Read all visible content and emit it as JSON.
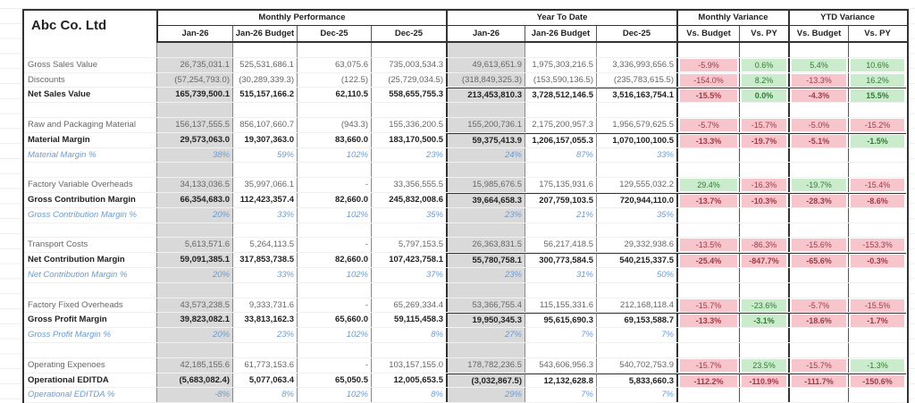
{
  "company": "Abc Co. Ltd",
  "groups": [
    "Monthly Performance",
    "Year To Date",
    "Monthly Variance",
    "YTD Variance"
  ],
  "columns": [
    "Jan-26",
    "Jan-26 Budget",
    "Dec-25",
    "Dec-25",
    "Jan-26",
    "Jan-26 Budget",
    "Dec-25",
    "Vs. Budget",
    "Vs. PY",
    "Vs. Budget",
    "Vs. PY"
  ],
  "colors": {
    "negative_bg": "#f6c6cc",
    "positive_bg": "#cbeccc",
    "shaded_column": "#d9d9d9",
    "pct_text": "#6a9bd0"
  },
  "rows": [
    {
      "type": "blank"
    },
    {
      "type": "normal",
      "label": "Gross Sales Value",
      "values": [
        "26,735,031.1",
        "525,531,686.1",
        "63,075.6",
        "735,003,534.3",
        "49,613,651.9",
        "1,975,303,216.5",
        "3,336,993,656.5"
      ],
      "variance": [
        {
          "v": "-5.9%",
          "c": "red"
        },
        {
          "v": "0.6%",
          "c": "green"
        },
        {
          "v": "5.4%",
          "c": "green"
        },
        {
          "v": "10.6%",
          "c": "green"
        }
      ]
    },
    {
      "type": "normal",
      "label": "Discounts",
      "values": [
        "(57,254,793.0)",
        "(30,289,339.3)",
        "(122.5)",
        "(25,729,034.5)",
        "(318,849,325.3)",
        "(153,590,136.5)",
        "(235,783,615.5)"
      ],
      "variance": [
        {
          "v": "-154.0%",
          "c": "red"
        },
        {
          "v": "8.2%",
          "c": "green"
        },
        {
          "v": "-13.3%",
          "c": "red"
        },
        {
          "v": "16.2%",
          "c": "green"
        }
      ]
    },
    {
      "type": "bold",
      "label": "Net Sales Value",
      "values": [
        "165,739,500.1",
        "515,157,166.2",
        "62,110.5",
        "558,655,755.3",
        "213,453,810.3",
        "3,728,512,146.5",
        "3,516,163,754.1"
      ],
      "variance": [
        {
          "v": "-15.5%",
          "c": "red"
        },
        {
          "v": "0.0%",
          "c": "green"
        },
        {
          "v": "-4.3%",
          "c": "red"
        },
        {
          "v": "15.5%",
          "c": "green"
        }
      ]
    },
    {
      "type": "blank"
    },
    {
      "type": "normal",
      "label": "Raw and Packaging Material",
      "values": [
        "156,137,555.5",
        "856,107,660.7",
        "(943.3)",
        "155,336,200.5",
        "155,200,736.1",
        "2,175,200,957.3",
        "1,956,579,625.5"
      ],
      "variance": [
        {
          "v": "-5.7%",
          "c": "red"
        },
        {
          "v": "-15.7%",
          "c": "red"
        },
        {
          "v": "-5.0%",
          "c": "red"
        },
        {
          "v": "-15.2%",
          "c": "red"
        }
      ]
    },
    {
      "type": "bold",
      "label": "Material Margin",
      "values": [
        "29,573,063.0",
        "19,307,363.0",
        "83,660.0",
        "183,170,500.5",
        "59,375,413.9",
        "1,206,157,055.3",
        "1,070,100,100.5"
      ],
      "variance": [
        {
          "v": "-13.3%",
          "c": "red"
        },
        {
          "v": "-19.7%",
          "c": "red"
        },
        {
          "v": "-5.1%",
          "c": "red"
        },
        {
          "v": "-1.5%",
          "c": "green"
        }
      ]
    },
    {
      "type": "pct",
      "label": "Material Margin %",
      "values": [
        "38%",
        "59%",
        "102%",
        "23%",
        "24%",
        "87%",
        "33%"
      ]
    },
    {
      "type": "blank"
    },
    {
      "type": "normal",
      "label": "Factory Variable Overheads",
      "values": [
        "34,133,036.5",
        "35,997,066.1",
        "-",
        "33,356,555.5",
        "15,985,676.5",
        "175,135,931.6",
        "129,555,032.2"
      ],
      "variance": [
        {
          "v": "29.4%",
          "c": "green"
        },
        {
          "v": "-16.3%",
          "c": "red"
        },
        {
          "v": "-19.7%",
          "c": "green"
        },
        {
          "v": "-15.4%",
          "c": "red"
        }
      ]
    },
    {
      "type": "bold",
      "label": "Gross Contribution Margin",
      "values": [
        "66,354,683.0",
        "112,423,357.4",
        "82,660.0",
        "245,832,008.6",
        "39,664,658.3",
        "207,759,103.5",
        "720,944,110.0"
      ],
      "variance": [
        {
          "v": "-13.7%",
          "c": "red"
        },
        {
          "v": "-10.3%",
          "c": "red"
        },
        {
          "v": "-28.3%",
          "c": "red"
        },
        {
          "v": "-8.6%",
          "c": "red"
        }
      ]
    },
    {
      "type": "pct",
      "label": "Gross Contribution Margin %",
      "values": [
        "20%",
        "33%",
        "102%",
        "35%",
        "23%",
        "21%",
        "35%"
      ]
    },
    {
      "type": "blank"
    },
    {
      "type": "normal",
      "label": "Transport Costs",
      "values": [
        "5,613,571.6",
        "5,264,113.5",
        "-",
        "5,797,153.5",
        "26,363,831.5",
        "56,217,418.5",
        "29,332,938.6"
      ],
      "variance": [
        {
          "v": "-13.5%",
          "c": "red"
        },
        {
          "v": "-86.3%",
          "c": "red"
        },
        {
          "v": "-15.6%",
          "c": "red"
        },
        {
          "v": "-153.3%",
          "c": "red"
        }
      ]
    },
    {
      "type": "bold",
      "label": "Net Contribution Margin",
      "values": [
        "59,091,385.1",
        "317,853,738.5",
        "82,660.0",
        "107,423,758.1",
        "55,780,758.1",
        "300,773,584.5",
        "540,215,337.5"
      ],
      "variance": [
        {
          "v": "-25.4%",
          "c": "red"
        },
        {
          "v": "-847.7%",
          "c": "red"
        },
        {
          "v": "-65.6%",
          "c": "red"
        },
        {
          "v": "-0.3%",
          "c": "red"
        }
      ]
    },
    {
      "type": "pct",
      "label": "Net Contribution Margin %",
      "values": [
        "20%",
        "33%",
        "102%",
        "37%",
        "23%",
        "31%",
        "50%"
      ]
    },
    {
      "type": "blank"
    },
    {
      "type": "normal",
      "label": "Factory Fixed Overheads",
      "values": [
        "43,573,238.5",
        "9,333,731.6",
        "-",
        "65,269,334.4",
        "53,366,755.4",
        "115,155,331.6",
        "212,168,118.4"
      ],
      "variance": [
        {
          "v": "-15.7%",
          "c": "red"
        },
        {
          "v": "-23.6%",
          "c": "green"
        },
        {
          "v": "-5.7%",
          "c": "red"
        },
        {
          "v": "-15.5%",
          "c": "red"
        }
      ]
    },
    {
      "type": "bold",
      "label": "Gross Profit Margin",
      "values": [
        "39,823,082.1",
        "33,813,162.3",
        "65,660.0",
        "59,115,458.3",
        "19,950,345.3",
        "95,615,690.3",
        "69,153,588.7"
      ],
      "variance": [
        {
          "v": "-13.3%",
          "c": "red"
        },
        {
          "v": "-3.1%",
          "c": "green"
        },
        {
          "v": "-18.6%",
          "c": "red"
        },
        {
          "v": "-1.7%",
          "c": "red"
        }
      ]
    },
    {
      "type": "pct",
      "label": "Gross Profit Margin %",
      "values": [
        "20%",
        "23%",
        "102%",
        "8%",
        "27%",
        "7%",
        "7%"
      ]
    },
    {
      "type": "blank"
    },
    {
      "type": "normal",
      "label": "Operating Expenoes",
      "values": [
        "42,185,155.6",
        "61,773,153.6",
        "-",
        "103,157,155.0",
        "178,782,236.5",
        "543,606,956.3",
        "540,702,753.9"
      ],
      "variance": [
        {
          "v": "-15.7%",
          "c": "red"
        },
        {
          "v": "23.5%",
          "c": "green"
        },
        {
          "v": "-15.7%",
          "c": "red"
        },
        {
          "v": "-1.3%",
          "c": "green"
        }
      ]
    },
    {
      "type": "bold",
      "label": "Operational EDITDA",
      "values": [
        "(5,683,082.4)",
        "5,077,063.4",
        "65,050.5",
        "12,005,653.5",
        "(3,032,867.5)",
        "12,132,628.8",
        "5,833,660.3"
      ],
      "variance": [
        {
          "v": "-112.2%",
          "c": "red"
        },
        {
          "v": "-110.9%",
          "c": "red"
        },
        {
          "v": "-111.7%",
          "c": "red"
        },
        {
          "v": "-150.6%",
          "c": "red"
        }
      ]
    },
    {
      "type": "pct",
      "label": "Operational EDITDA %",
      "values": [
        "-8%",
        "8%",
        "102%",
        "8%",
        "29%",
        "7%",
        "7%"
      ]
    }
  ]
}
